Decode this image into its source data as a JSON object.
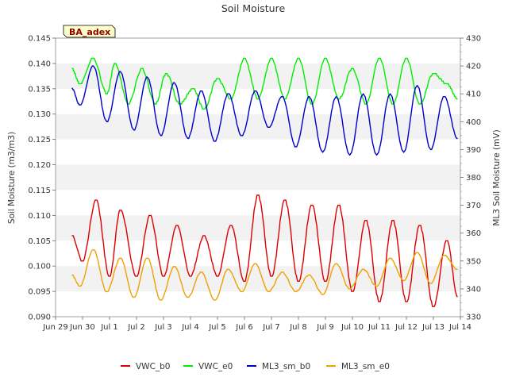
{
  "chart_data": {
    "type": "line",
    "title": "Soil Moisture",
    "ylabel_left": "Soil Moisture (m3/m3)",
    "ylabel_right": "ML3 Soil Moisture (mV)",
    "badge": "BA_adex",
    "x_tick_labels": [
      "Jun 29",
      "Jun 30",
      "Jul 1",
      "Jul 2",
      "Jul 3",
      "Jul 4",
      "Jul 5",
      "Jul 6",
      "Jul 7",
      "Jul 8",
      "Jul 9",
      "Jul 10",
      "Jul 11",
      "Jul 12",
      "Jul 13",
      "Jul 14"
    ],
    "x_range_days": [
      0,
      15
    ],
    "y_left": {
      "range": [
        0.09,
        0.145
      ],
      "ticks": [
        0.09,
        0.095,
        0.1,
        0.105,
        0.11,
        0.115,
        0.12,
        0.125,
        0.13,
        0.135,
        0.14,
        0.145
      ],
      "tick_labels": [
        "0.090",
        "0.095",
        "0.100",
        "0.105",
        "0.110",
        "0.115",
        "0.120",
        "0.125",
        "0.130",
        "0.135",
        "0.140",
        "0.145"
      ]
    },
    "y_right": {
      "range": [
        330,
        430
      ],
      "ticks": [
        330,
        340,
        350,
        360,
        370,
        380,
        390,
        400,
        410,
        420,
        430
      ],
      "tick_labels": [
        "330",
        "340",
        "350",
        "360",
        "370",
        "380",
        "390",
        "400",
        "410",
        "420",
        "430"
      ]
    },
    "grid": "horizontal-bands",
    "legend_position": "bottom-center",
    "series": [
      {
        "name": "VWC_b0",
        "axis": "left",
        "color": "#dd0000",
        "x": [
          0.6,
          1.0,
          1.5,
          2.0,
          2.4,
          3.0,
          3.5,
          4.0,
          4.5,
          5.0,
          5.5,
          6.0,
          6.5,
          7.0,
          7.5,
          8.0,
          8.5,
          9.0,
          9.5,
          10.0,
          10.5,
          11.0,
          11.5,
          12.0,
          12.5,
          13.0,
          13.5,
          14.0,
          14.5,
          14.9
        ],
        "values": [
          0.106,
          0.101,
          0.113,
          0.098,
          0.111,
          0.098,
          0.11,
          0.098,
          0.108,
          0.098,
          0.106,
          0.098,
          0.108,
          0.097,
          0.114,
          0.098,
          0.113,
          0.097,
          0.112,
          0.097,
          0.112,
          0.095,
          0.109,
          0.093,
          0.109,
          0.093,
          0.108,
          0.092,
          0.105,
          0.094
        ]
      },
      {
        "name": "VWC_e0",
        "axis": "left",
        "color": "#00ee00",
        "x": [
          0.6,
          0.9,
          1.4,
          1.9,
          2.2,
          2.7,
          3.2,
          3.7,
          4.1,
          4.6,
          5.1,
          5.5,
          6.0,
          6.5,
          7.0,
          7.5,
          8.0,
          8.5,
          9.0,
          9.5,
          10.0,
          10.5,
          11.0,
          11.5,
          12.0,
          12.5,
          13.0,
          13.5,
          14.0,
          14.5,
          14.9
        ],
        "values": [
          0.139,
          0.136,
          0.141,
          0.134,
          0.14,
          0.132,
          0.139,
          0.132,
          0.138,
          0.132,
          0.135,
          0.131,
          0.137,
          0.133,
          0.141,
          0.133,
          0.141,
          0.133,
          0.141,
          0.132,
          0.141,
          0.133,
          0.139,
          0.132,
          0.141,
          0.132,
          0.141,
          0.132,
          0.138,
          0.136,
          0.133
        ]
      },
      {
        "name": "ML3_sm_b0",
        "axis": "right",
        "color": "#0000cc",
        "x": [
          0.6,
          0.9,
          1.4,
          1.9,
          2.4,
          2.9,
          3.4,
          3.9,
          4.4,
          4.9,
          5.4,
          5.9,
          6.4,
          6.9,
          7.4,
          7.9,
          8.4,
          8.9,
          9.4,
          9.9,
          10.4,
          10.9,
          11.4,
          11.9,
          12.4,
          12.9,
          13.4,
          13.9,
          14.4,
          14.9
        ],
        "values": [
          412,
          406,
          420,
          400,
          418,
          397,
          416,
          395,
          414,
          394,
          411,
          393,
          410,
          395,
          411,
          398,
          409,
          391,
          409,
          389,
          409,
          388,
          410,
          388,
          410,
          389,
          413,
          390,
          409,
          394
        ]
      },
      {
        "name": "ML3_sm_e0",
        "axis": "right",
        "color": "#f0a000",
        "x": [
          0.6,
          0.9,
          1.4,
          1.9,
          2.4,
          2.9,
          3.4,
          3.9,
          4.4,
          4.9,
          5.4,
          5.9,
          6.4,
          6.9,
          7.4,
          7.9,
          8.4,
          8.9,
          9.4,
          9.9,
          10.4,
          10.9,
          11.4,
          11.9,
          12.4,
          12.9,
          13.4,
          13.9,
          14.4,
          14.9
        ],
        "values": [
          345,
          341,
          354,
          339,
          351,
          337,
          351,
          336,
          348,
          337,
          346,
          336,
          347,
          339,
          349,
          339,
          346,
          339,
          345,
          338,
          349,
          340,
          347,
          341,
          351,
          343,
          353,
          342,
          352,
          347
        ]
      }
    ]
  }
}
